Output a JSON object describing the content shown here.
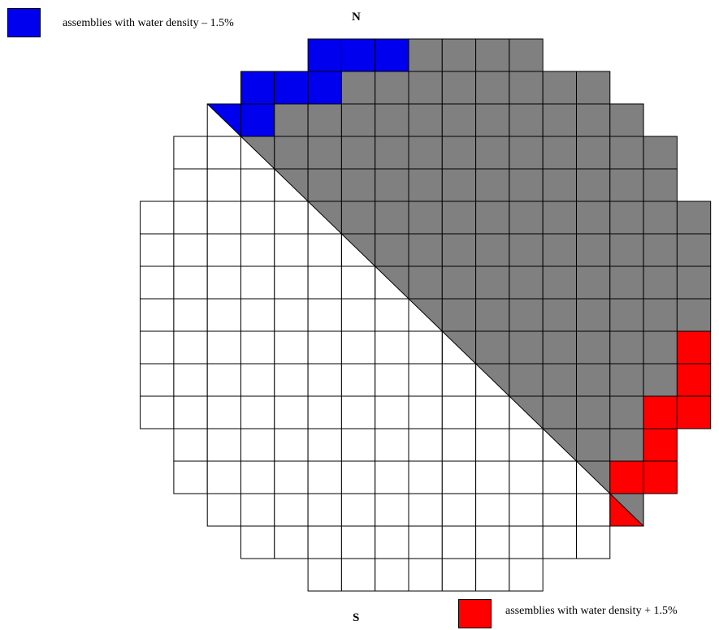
{
  "compass": {
    "north": "N",
    "south": "S"
  },
  "legend": [
    {
      "label": "assemblies with water density  – 1.5%",
      "color": "#0000ee"
    },
    {
      "label": "assemblies with water density  + 1.5%",
      "color": "#ff0000"
    }
  ],
  "colors": {
    "gray_region": "#808080",
    "white_region": "#ffffff",
    "grid_line": "#000000"
  },
  "core_rows": [
    {
      "start": 7,
      "end": 13
    },
    {
      "start": 5,
      "end": 15
    },
    {
      "start": 4,
      "end": 16
    },
    {
      "start": 3,
      "end": 17
    },
    {
      "start": 3,
      "end": 17
    },
    {
      "start": 2,
      "end": 18
    },
    {
      "start": 2,
      "end": 18
    },
    {
      "start": 2,
      "end": 18
    },
    {
      "start": 2,
      "end": 18
    },
    {
      "start": 2,
      "end": 18
    },
    {
      "start": 2,
      "end": 18
    },
    {
      "start": 2,
      "end": 18
    },
    {
      "start": 3,
      "end": 17
    },
    {
      "start": 3,
      "end": 17
    },
    {
      "start": 4,
      "end": 16
    },
    {
      "start": 5,
      "end": 15
    },
    {
      "start": 7,
      "end": 13
    }
  ],
  "blue_cells": [
    [
      0,
      7
    ],
    [
      0,
      8
    ],
    [
      0,
      9
    ],
    [
      1,
      5
    ],
    [
      1,
      6
    ],
    [
      1,
      7
    ],
    [
      2,
      5
    ]
  ],
  "red_cells": [
    [
      9,
      18
    ],
    [
      10,
      18
    ],
    [
      11,
      17
    ],
    [
      11,
      18
    ],
    [
      12,
      17
    ],
    [
      13,
      16
    ],
    [
      13,
      17
    ]
  ],
  "diagonal_half_cells": {
    "blue": [
      2,
      4
    ],
    "red": [
      14,
      16
    ]
  }
}
